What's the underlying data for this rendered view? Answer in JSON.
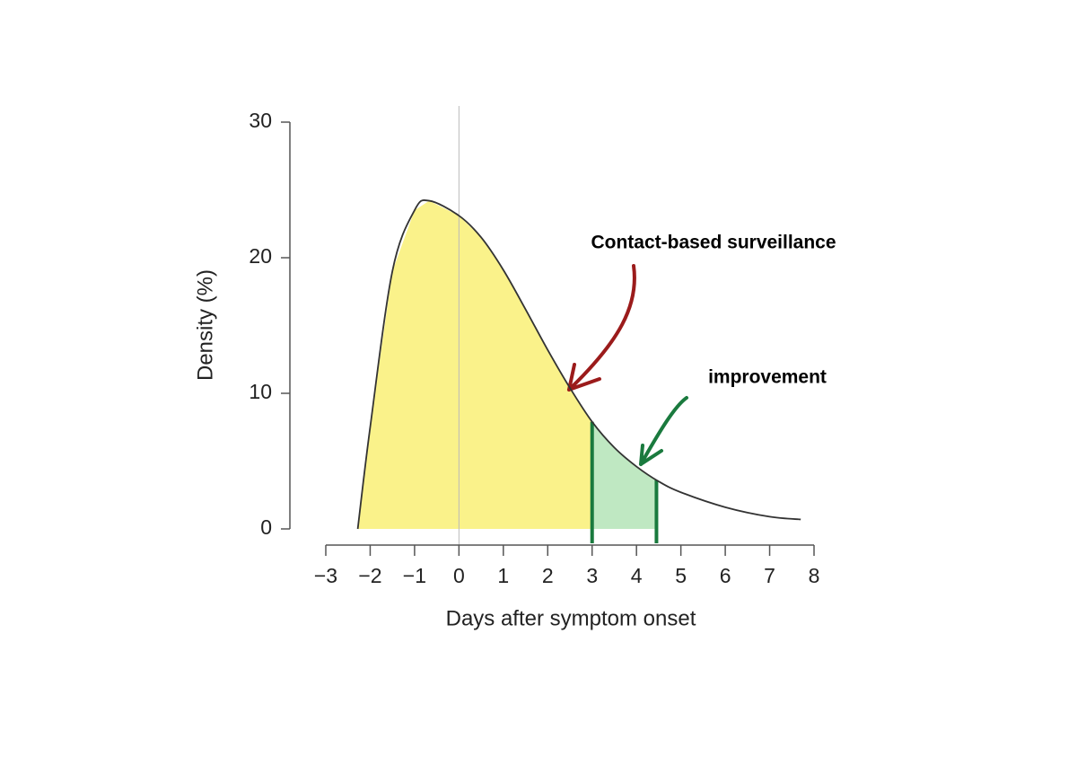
{
  "chart_data": {
    "type": "line",
    "x_label": "Days after symptom onset",
    "y_label": "Density (%)",
    "x": [
      -2.28,
      -2,
      -1.5,
      -1,
      -0.67,
      0,
      0.5,
      1,
      1.5,
      2,
      2.5,
      3,
      3.5,
      4,
      4.5,
      5,
      6,
      7,
      7.7
    ],
    "series": [
      {
        "color": "#333333",
        "values": [
          0,
          7.5,
          19,
          23.5,
          24.2,
          23.1,
          21.5,
          19.1,
          16.2,
          13.2,
          10.4,
          7.9,
          6.0,
          4.6,
          3.5,
          2.7,
          1.6,
          0.9,
          0.7
        ]
      }
    ],
    "shaded_regions": [
      {
        "from": -2.28,
        "to": 3,
        "color": "#faf28a"
      },
      {
        "from": 3,
        "to": 4.45,
        "color": "#bfe8c2",
        "edge_color": "#1a7a3e"
      }
    ],
    "reference_line_x": 0,
    "xlim": [
      -3,
      8
    ],
    "xticks": [
      {
        "value": -3,
        "label": "−3"
      },
      {
        "value": -2,
        "label": "−2"
      },
      {
        "value": -1,
        "label": "−1"
      },
      0,
      1,
      2,
      3,
      4,
      5,
      6,
      7,
      8
    ],
    "ylim": [
      0,
      30
    ],
    "yticks": [
      0,
      10,
      20,
      30
    ],
    "annotations": [
      {
        "text": "Contact-based surveillance",
        "color": "#9b1b1b"
      },
      {
        "text": "improvement",
        "color": "#1a7a3e"
      }
    ]
  }
}
